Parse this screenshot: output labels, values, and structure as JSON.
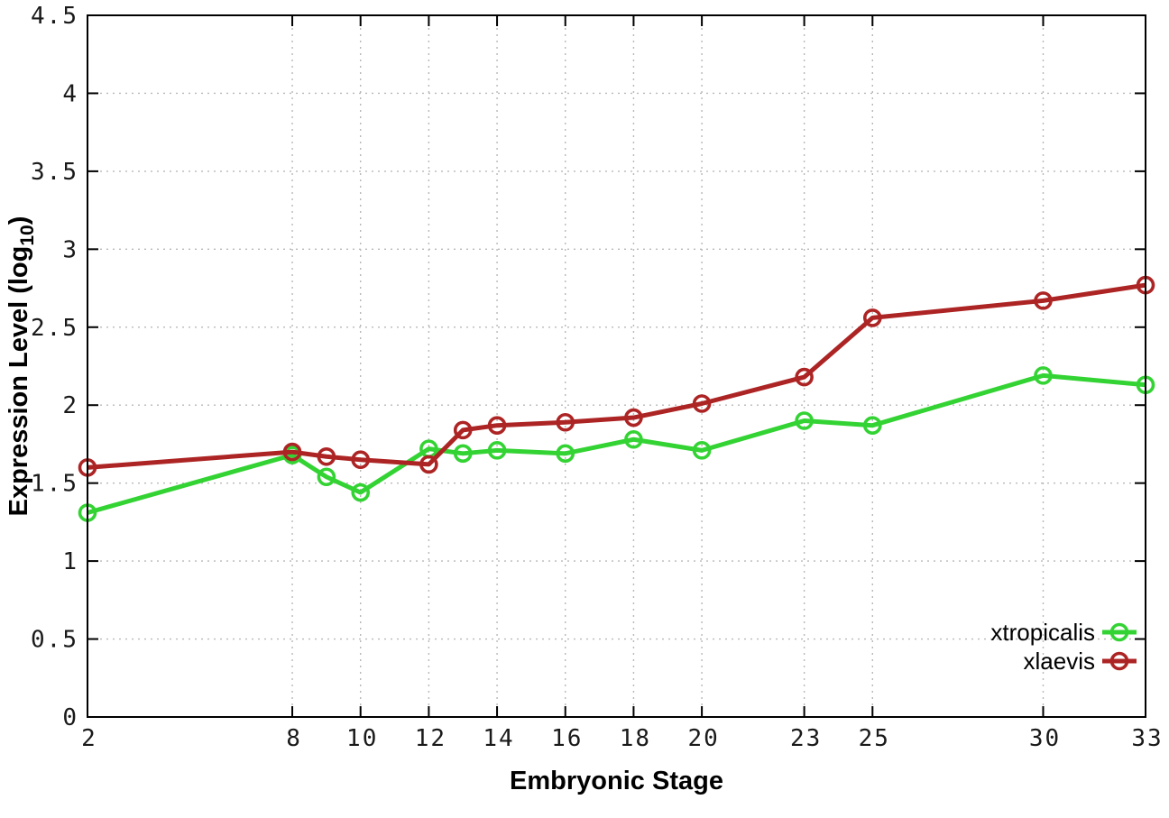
{
  "chart_data": {
    "type": "line",
    "title": "",
    "xlabel": "Embryonic Stage",
    "ylabel_parts": {
      "main": "Expression Level (log",
      "sub": "10",
      "close": ")"
    },
    "xlim": [
      2,
      33
    ],
    "ylim": [
      0,
      4.5
    ],
    "grid": true,
    "legend_position": "inside-bottom-right",
    "x_ticks": [
      2,
      8,
      10,
      12,
      14,
      16,
      18,
      20,
      23,
      25,
      30,
      33
    ],
    "x_tick_labels": [
      "2",
      "8",
      "10",
      "12",
      "14",
      "16",
      "18",
      "20",
      "23",
      "25",
      "30",
      "33"
    ],
    "y_ticks": [
      0,
      0.5,
      1,
      1.5,
      2,
      2.5,
      3,
      3.5,
      4,
      4.5
    ],
    "y_tick_labels": [
      "0",
      "0.5",
      "1",
      "1.5",
      "2",
      "2.5",
      "3",
      "3.5",
      "4",
      "4.5"
    ],
    "x": [
      2,
      8,
      9,
      10,
      12,
      13,
      14,
      16,
      18,
      20,
      23,
      25,
      30,
      33
    ],
    "series": [
      {
        "name": "xtropicalis",
        "color": "#33d333",
        "values": [
          1.31,
          1.68,
          1.54,
          1.44,
          1.72,
          1.69,
          1.71,
          1.69,
          1.78,
          1.71,
          1.9,
          1.87,
          2.19,
          2.13
        ]
      },
      {
        "name": "xlaevis",
        "color": "#ad2424",
        "values": [
          1.6,
          1.7,
          1.67,
          1.65,
          1.62,
          1.84,
          1.87,
          1.89,
          1.92,
          2.01,
          2.18,
          2.56,
          2.67,
          2.77
        ]
      }
    ],
    "colors": {
      "background": "#ffffff",
      "border": "#000000",
      "grid": "#b8b8b8",
      "tick_label": "#1a1a1a",
      "axis_title": "#000000"
    }
  }
}
